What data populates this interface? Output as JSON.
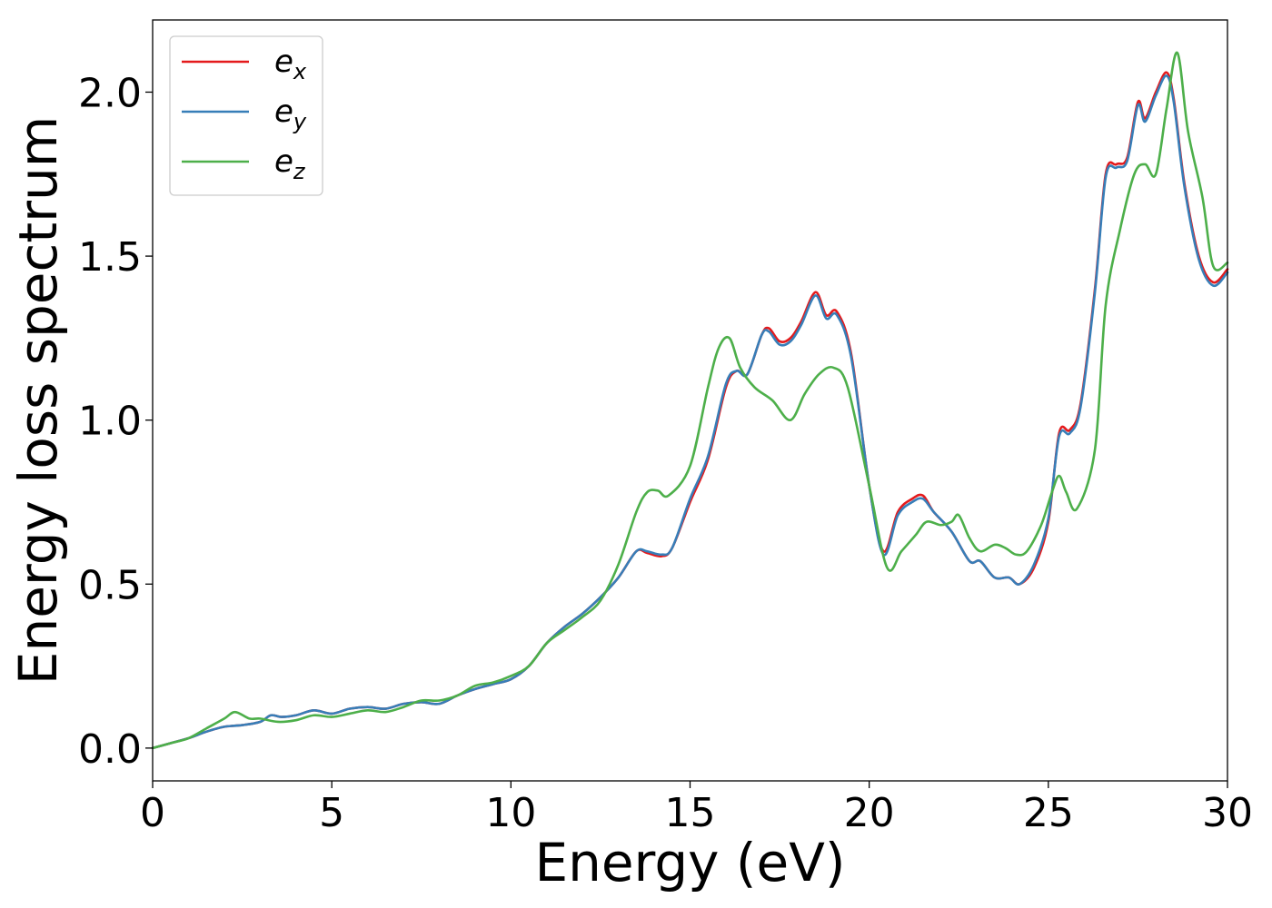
{
  "chart_data": {
    "type": "line",
    "xlabel": "Energy (eV)",
    "ylabel": "Energy loss spectrum",
    "xlim": [
      0,
      30
    ],
    "ylim": [
      -0.1,
      2.22
    ],
    "xticks": [
      0,
      5,
      10,
      15,
      20,
      25,
      30
    ],
    "yticks": [
      0.0,
      0.5,
      1.0,
      1.5,
      2.0
    ],
    "xtick_labels": [
      "0",
      "5",
      "10",
      "15",
      "20",
      "25",
      "30"
    ],
    "ytick_labels": [
      "0.0",
      "0.5",
      "1.0",
      "1.5",
      "2.0"
    ],
    "grid": false,
    "legend_position": "top-left",
    "series": [
      {
        "name": "e_x",
        "legend_base": "e",
        "legend_sub": "x",
        "color": "#e41a1c",
        "x": [
          0,
          0.5,
          1,
          1.5,
          2,
          2.5,
          3,
          3.3,
          3.6,
          4,
          4.5,
          5,
          5.5,
          6,
          6.5,
          7,
          7.5,
          8,
          8.5,
          9,
          9.5,
          10,
          10.5,
          11,
          11.5,
          12,
          12.5,
          13,
          13.5,
          13.8,
          14.2,
          14.5,
          15,
          15.5,
          16,
          16.3,
          16.6,
          17,
          17.2,
          17.5,
          17.8,
          18.1,
          18.5,
          18.8,
          19.1,
          19.5,
          20,
          20.4,
          20.8,
          21.2,
          21.5,
          21.8,
          22.3,
          22.8,
          23.1,
          23.5,
          23.9,
          24.2,
          24.6,
          25,
          25.3,
          25.6,
          25.9,
          26.3,
          26.6,
          26.9,
          27.2,
          27.5,
          27.7,
          28.0,
          28.3,
          28.5,
          28.8,
          29.2,
          29.6,
          30
        ],
        "values": [
          0.0,
          0.015,
          0.03,
          0.05,
          0.065,
          0.07,
          0.08,
          0.1,
          0.095,
          0.1,
          0.115,
          0.105,
          0.12,
          0.125,
          0.12,
          0.135,
          0.14,
          0.135,
          0.16,
          0.18,
          0.195,
          0.21,
          0.25,
          0.32,
          0.37,
          0.41,
          0.46,
          0.52,
          0.6,
          0.595,
          0.585,
          0.61,
          0.75,
          0.88,
          1.1,
          1.15,
          1.14,
          1.26,
          1.28,
          1.24,
          1.25,
          1.3,
          1.39,
          1.32,
          1.33,
          1.2,
          0.8,
          0.6,
          0.72,
          0.76,
          0.77,
          0.72,
          0.66,
          0.57,
          0.57,
          0.52,
          0.52,
          0.5,
          0.55,
          0.69,
          0.96,
          0.97,
          1.05,
          1.4,
          1.75,
          1.78,
          1.8,
          1.97,
          1.92,
          2.0,
          2.06,
          1.98,
          1.72,
          1.5,
          1.42,
          1.46
        ]
      },
      {
        "name": "e_y",
        "legend_base": "e",
        "legend_sub": "y",
        "color": "#377eb8",
        "x": [
          0,
          0.5,
          1,
          1.5,
          2,
          2.5,
          3,
          3.3,
          3.6,
          4,
          4.5,
          5,
          5.5,
          6,
          6.5,
          7,
          7.5,
          8,
          8.5,
          9,
          9.5,
          10,
          10.5,
          11,
          11.5,
          12,
          12.5,
          13,
          13.5,
          13.8,
          14.2,
          14.5,
          15,
          15.5,
          16,
          16.3,
          16.6,
          17,
          17.2,
          17.5,
          17.8,
          18.1,
          18.5,
          18.8,
          19.1,
          19.5,
          20,
          20.4,
          20.8,
          21.2,
          21.5,
          21.8,
          22.3,
          22.8,
          23.1,
          23.5,
          23.9,
          24.2,
          24.6,
          25,
          25.3,
          25.6,
          25.9,
          26.3,
          26.6,
          26.9,
          27.2,
          27.5,
          27.7,
          28.0,
          28.3,
          28.5,
          28.8,
          29.2,
          29.6,
          30
        ],
        "values": [
          0.0,
          0.015,
          0.03,
          0.05,
          0.065,
          0.07,
          0.08,
          0.1,
          0.095,
          0.1,
          0.115,
          0.105,
          0.12,
          0.125,
          0.12,
          0.135,
          0.14,
          0.135,
          0.16,
          0.18,
          0.195,
          0.21,
          0.25,
          0.32,
          0.37,
          0.41,
          0.46,
          0.52,
          0.6,
          0.6,
          0.59,
          0.61,
          0.76,
          0.89,
          1.11,
          1.15,
          1.14,
          1.26,
          1.27,
          1.23,
          1.24,
          1.29,
          1.38,
          1.31,
          1.32,
          1.19,
          0.8,
          0.59,
          0.71,
          0.75,
          0.76,
          0.72,
          0.66,
          0.57,
          0.57,
          0.52,
          0.52,
          0.5,
          0.56,
          0.7,
          0.95,
          0.96,
          1.04,
          1.39,
          1.74,
          1.77,
          1.79,
          1.96,
          1.91,
          1.99,
          2.05,
          1.97,
          1.71,
          1.49,
          1.41,
          1.45
        ]
      },
      {
        "name": "e_z",
        "legend_base": "e",
        "legend_sub": "z",
        "color": "#4daf4a",
        "x": [
          0,
          0.5,
          1,
          1.5,
          2,
          2.3,
          2.7,
          3,
          3.5,
          4,
          4.5,
          5,
          5.5,
          6,
          6.5,
          7,
          7.5,
          8,
          8.5,
          9,
          9.5,
          10,
          10.5,
          11,
          11.5,
          12,
          12.5,
          13,
          13.5,
          13.8,
          14.1,
          14.4,
          15,
          15.5,
          15.8,
          16.1,
          16.4,
          16.8,
          17.3,
          17.8,
          18.2,
          18.6,
          19.0,
          19.4,
          20,
          20.5,
          20.9,
          21.3,
          21.6,
          22,
          22.3,
          22.5,
          22.8,
          23.1,
          23.5,
          23.8,
          24.1,
          24.4,
          24.8,
          25.1,
          25.3,
          25.5,
          25.8,
          26.3,
          26.6,
          27,
          27.4,
          27.7,
          28.0,
          28.3,
          28.6,
          28.9,
          29.3,
          29.6,
          30
        ],
        "values": [
          0.0,
          0.015,
          0.03,
          0.06,
          0.09,
          0.11,
          0.09,
          0.09,
          0.08,
          0.085,
          0.1,
          0.095,
          0.105,
          0.115,
          0.11,
          0.125,
          0.145,
          0.145,
          0.16,
          0.19,
          0.2,
          0.22,
          0.25,
          0.32,
          0.36,
          0.4,
          0.45,
          0.56,
          0.72,
          0.78,
          0.785,
          0.77,
          0.86,
          1.1,
          1.22,
          1.25,
          1.16,
          1.1,
          1.06,
          1.0,
          1.08,
          1.14,
          1.16,
          1.1,
          0.8,
          0.55,
          0.6,
          0.65,
          0.69,
          0.68,
          0.69,
          0.71,
          0.64,
          0.6,
          0.62,
          0.61,
          0.59,
          0.6,
          0.68,
          0.78,
          0.83,
          0.78,
          0.73,
          0.91,
          1.35,
          1.58,
          1.75,
          1.78,
          1.75,
          1.95,
          2.12,
          1.88,
          1.68,
          1.47,
          1.48
        ]
      }
    ]
  }
}
